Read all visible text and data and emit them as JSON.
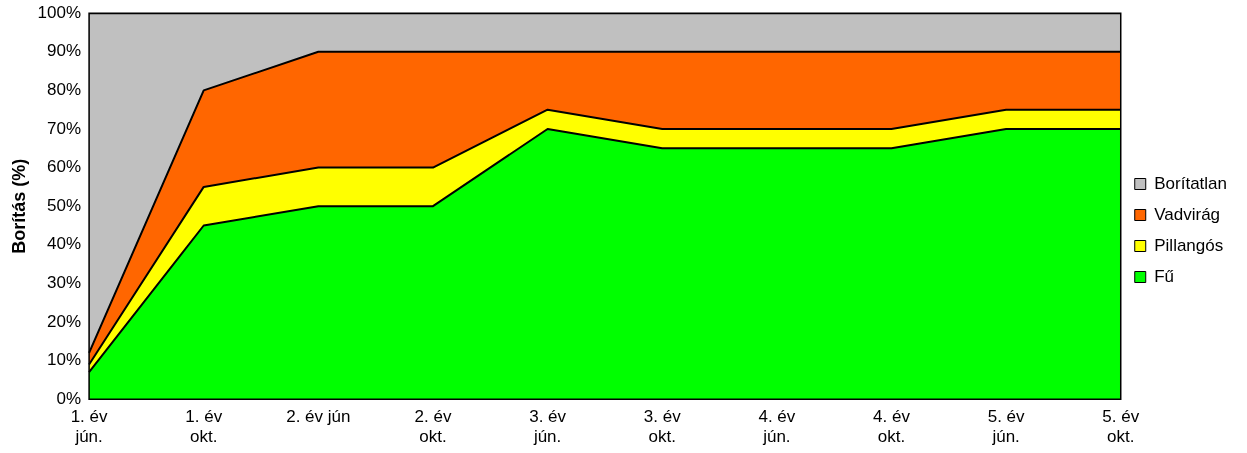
{
  "chart_data": {
    "type": "area",
    "stacked": true,
    "ylabel": "Borítás (%)",
    "categories": [
      "1. év\njún.",
      "1. év\nokt.",
      "2. év jún",
      "2. év\nokt.",
      "3. év\njún.",
      "3. év\nokt.",
      "4. év\njún.",
      "4. év\nokt.",
      "5. év\njún.",
      "5. év\nokt."
    ],
    "series": [
      {
        "name": "Fű",
        "color": "#00ff00",
        "values": [
          7,
          45,
          50,
          50,
          70,
          65,
          65,
          65,
          70,
          70
        ]
      },
      {
        "name": "Pillangós",
        "color": "#ffff00",
        "values": [
          2,
          10,
          10,
          10,
          5,
          5,
          5,
          5,
          5,
          5
        ]
      },
      {
        "name": "Vadvirág",
        "color": "#ff6600",
        "values": [
          3,
          25,
          30,
          30,
          15,
          20,
          20,
          20,
          15,
          15
        ]
      },
      {
        "name": "Borítatlan",
        "color": "#c0c0c0",
        "values": [
          88,
          20,
          10,
          10,
          10,
          10,
          10,
          10,
          10,
          10
        ]
      }
    ],
    "ylim": [
      0,
      100
    ],
    "yticks": [
      {
        "value": 0,
        "label": "0%"
      },
      {
        "value": 10,
        "label": "10%"
      },
      {
        "value": 20,
        "label": "20%"
      },
      {
        "value": 30,
        "label": "30%"
      },
      {
        "value": 40,
        "label": "40%"
      },
      {
        "value": 50,
        "label": "50%"
      },
      {
        "value": 60,
        "label": "60%"
      },
      {
        "value": 70,
        "label": "70%"
      },
      {
        "value": 80,
        "label": "80%"
      },
      {
        "value": 90,
        "label": "90%"
      },
      {
        "value": 100,
        "label": "100%"
      }
    ],
    "grid": false,
    "legend": "right",
    "marker": "none"
  }
}
